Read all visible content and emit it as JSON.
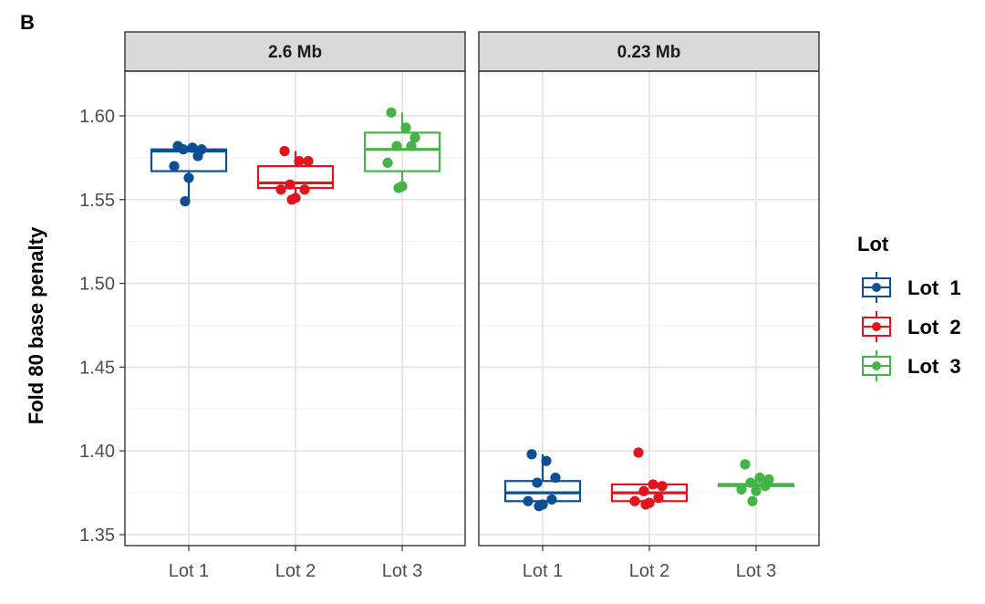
{
  "panel_letter": "B",
  "chart_data": {
    "type": "boxplot",
    "ylabel": "Fold 80 base penalty",
    "ylim": [
      1.34,
      1.625
    ],
    "yticks": [
      1.35,
      1.4,
      1.45,
      1.5,
      1.55,
      1.6
    ],
    "ytick_labels": [
      "1.35",
      "1.40",
      "1.45",
      "1.50",
      "1.55",
      "1.60"
    ],
    "grid": true,
    "categories": [
      "Lot 1",
      "Lot 2",
      "Lot 3"
    ],
    "legend": {
      "title": "Lot",
      "position": "right",
      "entries": [
        {
          "label": "Lot  1",
          "color": "#0b4f95"
        },
        {
          "label": "Lot  2",
          "color": "#e3141d"
        },
        {
          "label": "Lot  3",
          "color": "#44b446"
        }
      ]
    },
    "facets": [
      {
        "title": "2.6 Mb",
        "series": [
          {
            "name": "Lot 1",
            "color": "#0b4f95",
            "box": {
              "whisker_low": 1.549,
              "q1": 1.567,
              "median": 1.579,
              "q3": 1.58,
              "whisker_high": 1.582
            },
            "points": [
              1.582,
              1.581,
              1.58,
              1.58,
              1.576,
              1.57,
              1.563,
              1.549
            ]
          },
          {
            "name": "Lot 2",
            "color": "#e3141d",
            "box": {
              "whisker_low": 1.55,
              "q1": 1.557,
              "median": 1.56,
              "q3": 1.57,
              "whisker_high": 1.579
            },
            "points": [
              1.579,
              1.573,
              1.573,
              1.559,
              1.556,
              1.556,
              1.551,
              1.55
            ]
          },
          {
            "name": "Lot 3",
            "color": "#44b446",
            "box": {
              "whisker_low": 1.557,
              "q1": 1.567,
              "median": 1.58,
              "q3": 1.59,
              "whisker_high": 1.602
            },
            "points": [
              1.602,
              1.593,
              1.587,
              1.582,
              1.582,
              1.572,
              1.558,
              1.557
            ]
          }
        ]
      },
      {
        "title": "0.23 Mb",
        "series": [
          {
            "name": "Lot 1",
            "color": "#0b4f95",
            "box": {
              "whisker_low": 1.367,
              "q1": 1.37,
              "median": 1.375,
              "q3": 1.382,
              "whisker_high": 1.398
            },
            "points": [
              1.398,
              1.394,
              1.384,
              1.381,
              1.371,
              1.37,
              1.368,
              1.367
            ]
          },
          {
            "name": "Lot 2",
            "color": "#e3141d",
            "box": {
              "whisker_low": 1.368,
              "q1": 1.37,
              "median": 1.375,
              "q3": 1.38,
              "whisker_high": 1.38
            },
            "points": [
              1.399,
              1.38,
              1.379,
              1.376,
              1.372,
              1.37,
              1.369,
              1.368
            ]
          },
          {
            "name": "Lot 3",
            "color": "#44b446",
            "box": {
              "whisker_low": 1.376,
              "q1": 1.379,
              "median": 1.38,
              "q3": 1.38,
              "whisker_high": 1.384
            },
            "points": [
              1.392,
              1.384,
              1.383,
              1.381,
              1.379,
              1.377,
              1.376,
              1.37
            ]
          }
        ]
      }
    ]
  }
}
